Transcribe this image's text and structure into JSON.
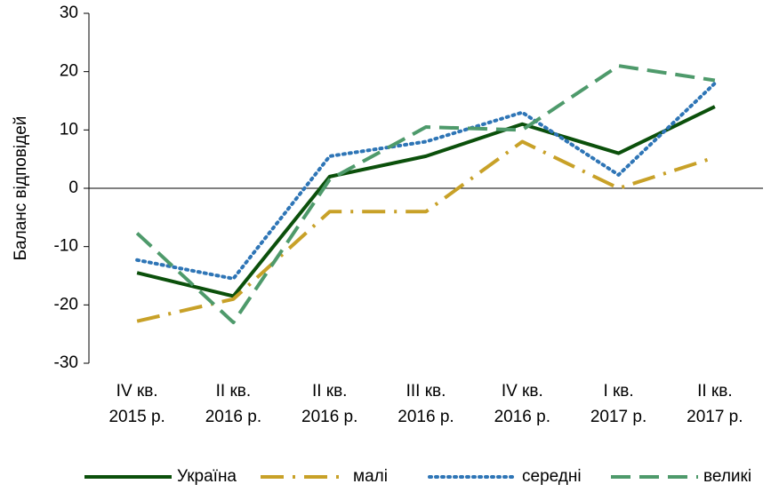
{
  "chart_data": {
    "type": "line",
    "ylabel": "Баланс відповідей",
    "categories": [
      [
        "IV кв.",
        "2015 р."
      ],
      [
        "II кв.",
        "2016 р."
      ],
      [
        "II кв.",
        "2016 р."
      ],
      [
        "III кв.",
        "2016 р."
      ],
      [
        "IV кв.",
        "2016 р."
      ],
      [
        "I кв.",
        "2017 р."
      ],
      [
        "II кв.",
        "2017 р."
      ]
    ],
    "series": [
      {
        "name": "Україна",
        "color": "#0b500b",
        "style": "solid",
        "values": [
          -14.5,
          -18.5,
          2,
          5.5,
          11,
          6,
          14
        ]
      },
      {
        "name": "малі",
        "color": "#c8a128",
        "style": "dashdot",
        "values": [
          -22.8,
          -19,
          -4,
          -4,
          8,
          0,
          5.3
        ]
      },
      {
        "name": "середні",
        "color": "#2e75b6",
        "style": "dotted",
        "values": [
          -12.3,
          -15.5,
          5.5,
          8,
          13,
          2.3,
          18
        ]
      },
      {
        "name": "великі",
        "color": "#4e9a6b",
        "style": "dashed",
        "values": [
          -7.7,
          -23,
          1.5,
          10.5,
          10,
          21,
          18.5
        ]
      }
    ],
    "ylim": [
      -30,
      30
    ],
    "yticks": [
      -30,
      -20,
      -10,
      0,
      10,
      20,
      30
    ],
    "legend": "bottom"
  }
}
